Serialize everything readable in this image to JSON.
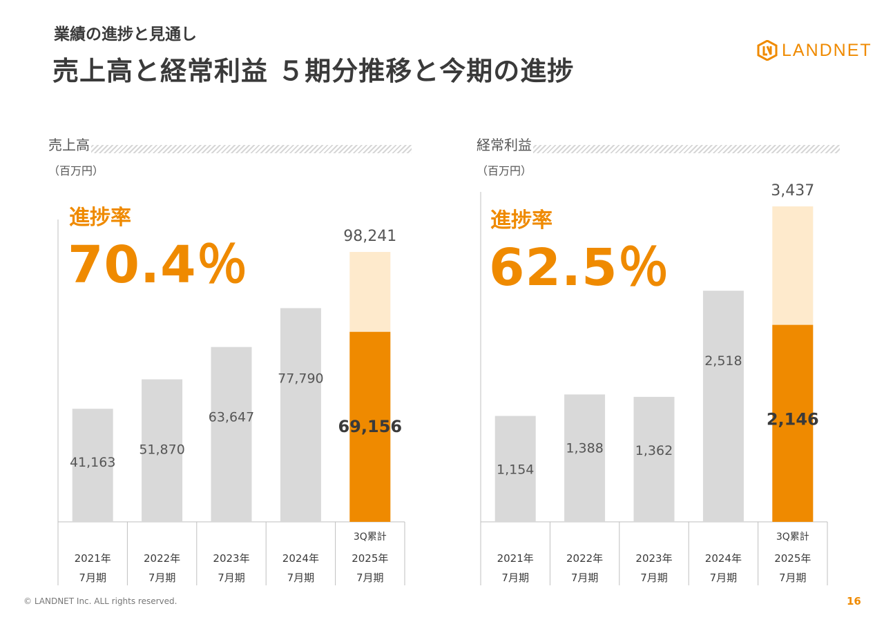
{
  "header": {
    "subtitle": "業績の進捗と見通し",
    "title": "売上高と経常利益 ５期分推移と今期の進捗"
  },
  "logo": {
    "text": "LANDNET"
  },
  "colors": {
    "accent": "#ef8a00",
    "forecast": "#feeacc",
    "past": "#d9d9d9",
    "text": "#3a3a3a"
  },
  "footer": {
    "copyright": "© LANDNET Inc. ALL rights reserved.",
    "page": "16"
  },
  "chart_data": [
    {
      "type": "bar",
      "title": "売上高",
      "unit": "（百万円）",
      "progress_label": "進捗率",
      "progress_value": "70.4％",
      "categories": [
        "2021年\n7月期",
        "2022年\n7月期",
        "2023年\n7月期",
        "2024年\n7月期",
        "2025年\n7月期"
      ],
      "category_prefix": [
        "",
        "",
        "",
        "",
        "3Q累計"
      ],
      "values": [
        41163,
        51870,
        63647,
        77790,
        69156
      ],
      "value_labels": [
        "41,163",
        "51,870",
        "63,647",
        "77,790",
        "69,156"
      ],
      "forecast": {
        "index": 4,
        "value": 98241,
        "label": "98,241"
      },
      "ylim": [
        0,
        98241
      ]
    },
    {
      "type": "bar",
      "title": "経常利益",
      "unit": "（百万円）",
      "progress_label": "進捗率",
      "progress_value": "62.5％",
      "categories": [
        "2021年\n7月期",
        "2022年\n7月期",
        "2023年\n7月期",
        "2024年\n7月期",
        "2025年\n7月期"
      ],
      "category_prefix": [
        "",
        "",
        "",
        "",
        "3Q累計"
      ],
      "values": [
        1154,
        1388,
        1362,
        2518,
        2146
      ],
      "value_labels": [
        "1,154",
        "1,388",
        "1,362",
        "2,518",
        "2,146"
      ],
      "forecast": {
        "index": 4,
        "value": 3437,
        "label": "3,437"
      },
      "ylim": [
        0,
        3437
      ]
    }
  ]
}
